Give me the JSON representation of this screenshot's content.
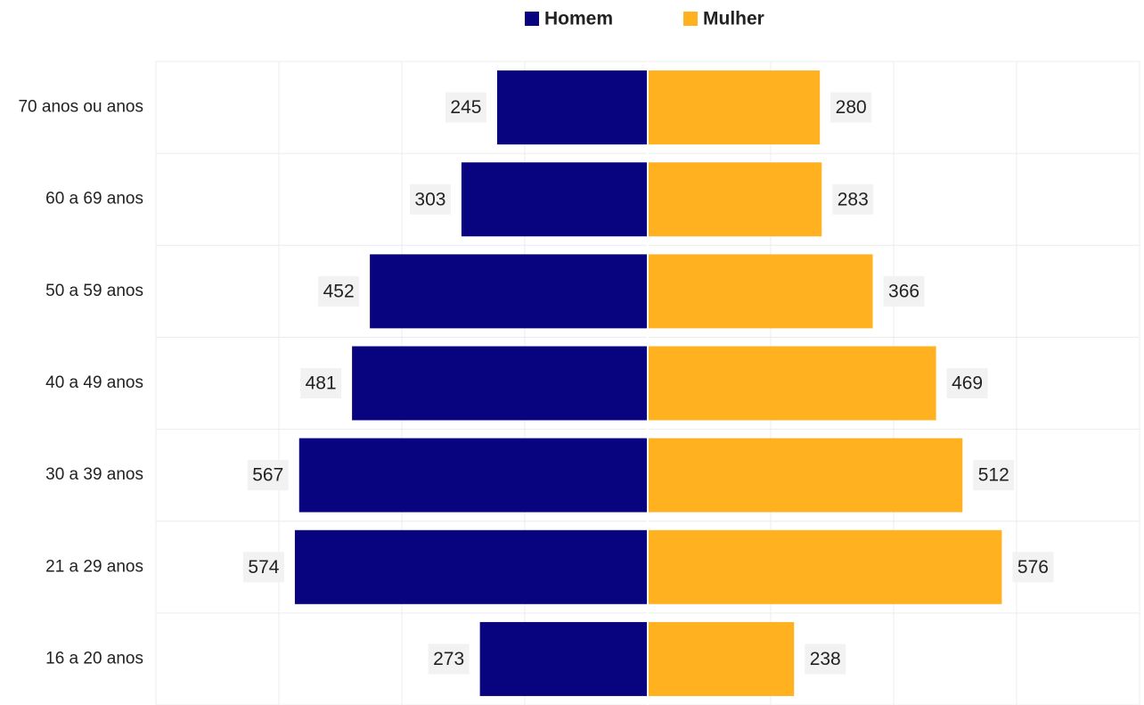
{
  "chart_data": {
    "type": "bar",
    "orientation": "horizontal",
    "mirrored": true,
    "categories": [
      "70 anos ou anos",
      "60 a 69 anos",
      "50 a 59 anos",
      "40 a 49 anos",
      "30 a 39 anos",
      "21 a 29 anos",
      "16 a 20 anos"
    ],
    "series": [
      {
        "name": "Homem",
        "color": "#08037e",
        "values": [
          245,
          303,
          452,
          481,
          567,
          574,
          273
        ]
      },
      {
        "name": "Mulher",
        "color": "#ffb11f",
        "values": [
          280,
          283,
          366,
          469,
          512,
          576,
          238
        ]
      }
    ],
    "xlim": [
      -800,
      800
    ],
    "xticks": [
      -800,
      -600,
      -400,
      -200,
      0,
      200,
      400,
      600,
      800
    ],
    "grid": true,
    "legend": "top"
  }
}
